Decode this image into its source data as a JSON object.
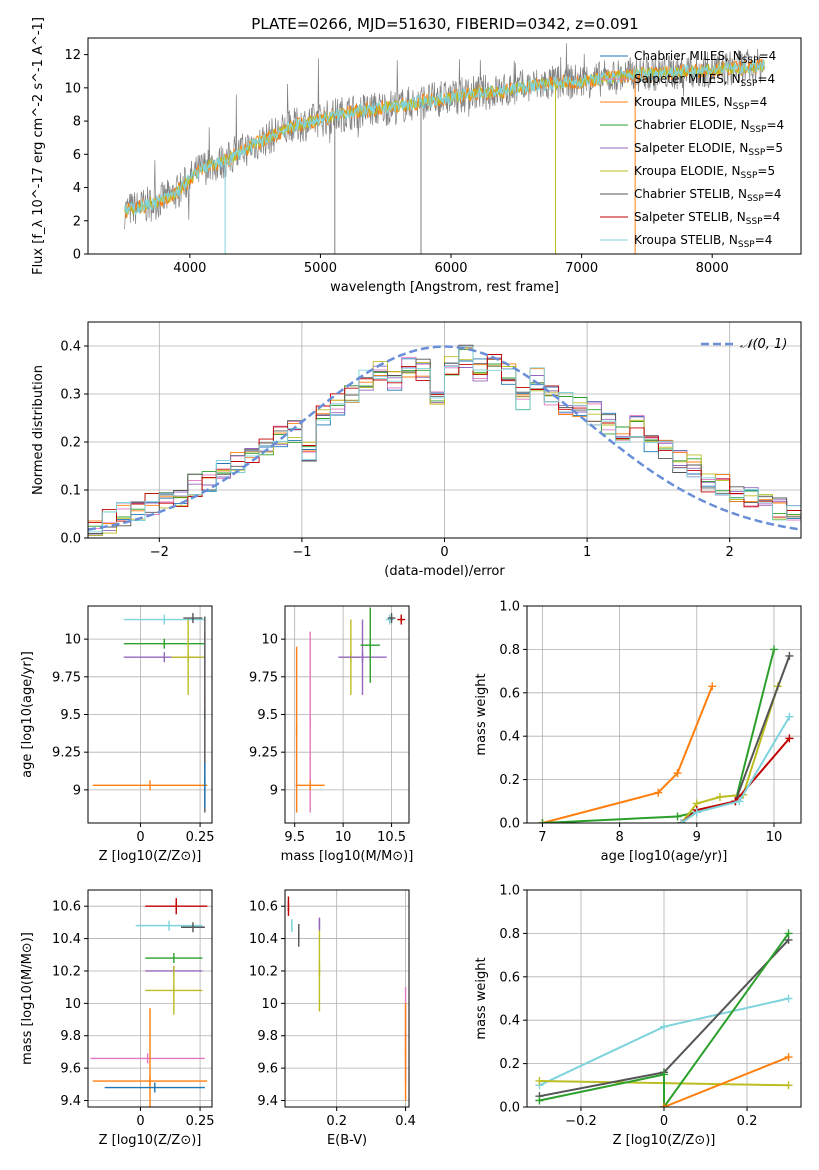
{
  "figure_title": "PLATE=0266, MJD=51630, FIBERID=0342, z=0.091",
  "series_colors": {
    "Chabrier MILES": "#1f77b4",
    "Salpeter MILES": "#e377c2",
    "Kroupa MILES": "#ff7f0e",
    "Chabrier ELODIE": "#2ca02c",
    "Salpeter ELODIE": "#9467bd",
    "Kroupa ELODIE": "#bcbd22",
    "Chabrier STELIB": "#555555",
    "Salpeter STELIB": "#c00000",
    "Kroupa STELIB": "#7fd3dc",
    "data": "#808080"
  },
  "chart_data": [
    {
      "id": "spectrum",
      "type": "line",
      "xlabel": "wavelength [Angstrom, rest frame]",
      "ylabel": "Flux [f_λ 10^-17 erg cm^-2 s^-1 A^-1]",
      "xlim": [
        3220,
        8680
      ],
      "ylim": [
        0,
        13
      ],
      "xticks": [
        4000,
        5000,
        6000,
        7000,
        8000
      ],
      "yticks": [
        0,
        2,
        4,
        6,
        8,
        10,
        12
      ],
      "legend": [
        "Chabrier MILES, N_SSP=4",
        "Salpeter MILES, N_SSP=4",
        "Kroupa MILES, N_SSP=4",
        "Chabrier ELODIE, N_SSP=4",
        "Salpeter ELODIE, N_SSP=5",
        "Kroupa ELODIE, N_SSP=5",
        "Chabrier STELIB, N_SSP=4",
        "Salpeter STELIB, N_SSP=4",
        "Kroupa STELIB, N_SSP=4"
      ],
      "legend_loc": "right",
      "continuum_x": [
        3500,
        3600,
        3700,
        3800,
        3900,
        4000,
        4100,
        4200,
        4300,
        4400,
        4500,
        4600,
        4700,
        4800,
        4900,
        5000,
        5200,
        5400,
        5600,
        5800,
        6000,
        6200,
        6400,
        6600,
        6800,
        7000,
        7200,
        7400,
        7600,
        7800,
        8000,
        8200,
        8400
      ],
      "continuum_y": [
        2.6,
        2.8,
        3.0,
        3.3,
        3.7,
        4.5,
        5.2,
        5.4,
        5.7,
        6.2,
        6.6,
        7.0,
        7.4,
        7.7,
        7.9,
        8.1,
        8.5,
        8.7,
        8.9,
        9.2,
        9.4,
        9.7,
        9.8,
        10.1,
        10.3,
        10.4,
        10.6,
        10.8,
        10.9,
        11.0,
        11.1,
        11.2,
        11.3
      ]
    },
    {
      "id": "residuals",
      "type": "step",
      "xlabel": "(data-model)/error",
      "ylabel": "Normed distribution",
      "xlim": [
        -2.5,
        2.5
      ],
      "ylim": [
        0,
        0.45
      ],
      "xticks": [
        -2,
        -1,
        0,
        1,
        2
      ],
      "yticks": [
        0.0,
        0.1,
        0.2,
        0.3,
        0.4
      ],
      "grid": true,
      "legend": [
        "𝒩(0, 1)"
      ],
      "legend_loc": "top-right",
      "bin_edges": [
        -2.5,
        -2.4,
        -2.3,
        -2.2,
        -2.1,
        -2.0,
        -1.9,
        -1.8,
        -1.7,
        -1.6,
        -1.5,
        -1.4,
        -1.3,
        -1.2,
        -1.1,
        -1.0,
        -0.9,
        -0.8,
        -0.7,
        -0.6,
        -0.5,
        -0.4,
        -0.3,
        -0.2,
        -0.1,
        0.0,
        0.1,
        0.2,
        0.3,
        0.4,
        0.5,
        0.6,
        0.7,
        0.8,
        0.9,
        1.0,
        1.1,
        1.2,
        1.3,
        1.4,
        1.5,
        1.6,
        1.7,
        1.8,
        1.9,
        2.0,
        2.1,
        2.2,
        2.3,
        2.4,
        2.5
      ],
      "base_hist": [
        0.03,
        0.035,
        0.05,
        0.055,
        0.07,
        0.075,
        0.09,
        0.11,
        0.12,
        0.14,
        0.16,
        0.18,
        0.19,
        0.21,
        0.22,
        0.18,
        0.26,
        0.28,
        0.3,
        0.33,
        0.35,
        0.33,
        0.36,
        0.35,
        0.3,
        0.36,
        0.38,
        0.35,
        0.37,
        0.34,
        0.29,
        0.33,
        0.3,
        0.28,
        0.27,
        0.26,
        0.24,
        0.22,
        0.23,
        0.2,
        0.19,
        0.16,
        0.15,
        0.12,
        0.11,
        0.09,
        0.08,
        0.07,
        0.06,
        0.05
      ]
    },
    {
      "id": "age_vs_Z",
      "type": "errorbar",
      "xlabel": "Z [log10(Z/Z⊙)]",
      "ylabel": "age [log10(age/yr)]",
      "xlim": [
        -0.22,
        0.3
      ],
      "ylim": [
        8.78,
        10.22
      ],
      "xticks": [
        0.0,
        0.25
      ],
      "yticks": [
        9.0,
        9.25,
        9.5,
        9.75,
        10.0
      ],
      "grid": true,
      "points": [
        {
          "series": "Kroupa STELIB",
          "x": 0.1,
          "y": 10.13,
          "xerr": 0.17,
          "yerr": 0.0
        },
        {
          "series": "Chabrier STELIB",
          "x": 0.22,
          "y": 10.14,
          "xerr": 0.04,
          "yerr": 0.0
        },
        {
          "series": "Chabrier ELODIE",
          "x": 0.1,
          "y": 9.97,
          "xerr": 0.17,
          "yerr": 0.0
        },
        {
          "series": "Salpeter ELODIE",
          "x": 0.1,
          "y": 9.88,
          "xerr": 0.17,
          "yerr": 0.0
        },
        {
          "series": "Kroupa ELODIE",
          "x": 0.2,
          "y": 9.88,
          "xerr": 0.07,
          "yerr": 0.25
        },
        {
          "series": "Salpeter MILES",
          "x": 0.27,
          "y": 9.6,
          "xerr": 0.0,
          "yerr": 0.45
        },
        {
          "series": "Chabrier STELIB",
          "x": 0.27,
          "y": 9.5,
          "xerr": 0.0,
          "yerr": 0.65
        },
        {
          "series": "Kroupa MILES",
          "x": 0.04,
          "y": 9.03,
          "xerr": 0.24,
          "yerr": 0.0
        },
        {
          "series": "Chabrier MILES",
          "x": 0.27,
          "y": 9.03,
          "xerr": 0.0,
          "yerr": 0.15
        }
      ]
    },
    {
      "id": "age_vs_mass",
      "type": "errorbar",
      "xlabel": "mass [log10(M/M⊙)]",
      "ylabel": "",
      "xlim": [
        9.4,
        10.68
      ],
      "ylim": [
        8.78,
        10.22
      ],
      "xticks": [
        9.5,
        10.0,
        10.5
      ],
      "yticks": [
        9.0,
        9.25,
        9.5,
        9.75,
        10.0
      ],
      "grid": true,
      "points": [
        {
          "series": "Salpeter STELIB",
          "x": 10.6,
          "y": 10.13,
          "xerr": 0.04,
          "yerr": 0.02
        },
        {
          "series": "Kroupa STELIB",
          "x": 10.48,
          "y": 10.13,
          "xerr": 0.04,
          "yerr": 0.02
        },
        {
          "series": "Chabrier STELIB",
          "x": 10.5,
          "y": 10.14,
          "xerr": 0.04,
          "yerr": 0.01
        },
        {
          "series": "Kroupa ELODIE",
          "x": 10.08,
          "y": 9.88,
          "xerr": 0.08,
          "yerr": 0.25
        },
        {
          "series": "Salpeter ELODIE",
          "x": 10.2,
          "y": 9.88,
          "xerr": 0.25,
          "yerr": 0.25
        },
        {
          "series": "Chabrier ELODIE",
          "x": 10.28,
          "y": 9.96,
          "xerr": 0.1,
          "yerr": 0.25
        },
        {
          "series": "Salpeter MILES",
          "x": 9.66,
          "y": 9.45,
          "xerr": 0.0,
          "yerr": 0.6
        },
        {
          "series": "Kroupa MILES",
          "x": 9.52,
          "y": 9.4,
          "xerr": 0.0,
          "yerr": 0.55
        },
        {
          "series": "Kroupa MILES",
          "x": 9.66,
          "y": 9.03,
          "xerr": 0.15,
          "yerr": 0.0
        }
      ]
    },
    {
      "id": "weight_vs_age",
      "type": "line",
      "xlabel": "age [log10(age/yr)]",
      "ylabel": "mass weight",
      "xlim": [
        6.8,
        10.35
      ],
      "ylim": [
        0,
        1.0
      ],
      "xticks": [
        7,
        8,
        9,
        10
      ],
      "yticks": [
        0.0,
        0.2,
        0.4,
        0.6,
        0.8,
        1.0
      ],
      "grid": true,
      "series": [
        {
          "series": "Kroupa MILES",
          "x": [
            7.0,
            8.5,
            8.75,
            9.2
          ],
          "y": [
            0.0,
            0.14,
            0.23,
            0.63
          ]
        },
        {
          "series": "Chabrier ELODIE",
          "x": [
            7.0,
            8.75,
            9.0,
            9.5,
            10.0
          ],
          "y": [
            0.0,
            0.03,
            0.05,
            0.1,
            0.8
          ]
        },
        {
          "series": "Kroupa ELODIE",
          "x": [
            8.8,
            9.0,
            9.3,
            9.6,
            10.05
          ],
          "y": [
            0.0,
            0.09,
            0.12,
            0.13,
            0.63
          ]
        },
        {
          "series": "Chabrier STELIB",
          "x": [
            8.8,
            9.0,
            9.5,
            10.2
          ],
          "y": [
            0.0,
            0.05,
            0.1,
            0.77
          ]
        },
        {
          "series": "Salpeter STELIB",
          "x": [
            8.8,
            9.0,
            9.5,
            10.2
          ],
          "y": [
            0.0,
            0.06,
            0.1,
            0.39
          ]
        },
        {
          "series": "Kroupa STELIB",
          "x": [
            8.8,
            9.0,
            9.55,
            10.2
          ],
          "y": [
            0.0,
            0.05,
            0.1,
            0.49
          ]
        }
      ]
    },
    {
      "id": "mass_vs_Z",
      "type": "errorbar",
      "xlabel": "Z [log10(Z/Z⊙)]",
      "ylabel": "mass [log10(M/M⊙)]",
      "xlim": [
        -0.22,
        0.3
      ],
      "ylim": [
        9.36,
        10.7
      ],
      "xticks": [
        0.0,
        0.25
      ],
      "yticks": [
        9.4,
        9.6,
        9.8,
        10.0,
        10.2,
        10.4,
        10.6
      ],
      "grid": true,
      "points": [
        {
          "series": "Salpeter STELIB",
          "x": 0.15,
          "y": 10.6,
          "xerr": 0.13,
          "yerr": 0.05
        },
        {
          "series": "Kroupa STELIB",
          "x": 0.12,
          "y": 10.48,
          "xerr": 0.14,
          "yerr": 0.0
        },
        {
          "series": "Chabrier STELIB",
          "x": 0.22,
          "y": 10.47,
          "xerr": 0.05,
          "yerr": 0.0
        },
        {
          "series": "Chabrier ELODIE",
          "x": 0.14,
          "y": 10.28,
          "xerr": 0.12,
          "yerr": 0.0
        },
        {
          "series": "Salpeter ELODIE",
          "x": 0.14,
          "y": 10.2,
          "xerr": 0.12,
          "yerr": 0.0
        },
        {
          "series": "Kroupa ELODIE",
          "x": 0.14,
          "y": 10.08,
          "xerr": 0.12,
          "yerr": 0.15
        },
        {
          "series": "Salpeter MILES",
          "x": 0.03,
          "y": 9.66,
          "xerr": 0.24,
          "yerr": 0.0
        },
        {
          "series": "Kroupa MILES",
          "x": 0.04,
          "y": 9.52,
          "xerr": 0.24,
          "yerr": 0.45
        },
        {
          "series": "Chabrier MILES",
          "x": 0.06,
          "y": 9.48,
          "xerr": 0.21,
          "yerr": 0.0
        }
      ]
    },
    {
      "id": "mass_vs_EBV",
      "type": "errorbar",
      "xlabel": "E(B-V)",
      "ylabel": "",
      "xlim": [
        0.05,
        0.41
      ],
      "ylim": [
        9.36,
        10.7
      ],
      "xticks": [
        0.2,
        0.4
      ],
      "yticks": [
        9.4,
        9.6,
        9.8,
        10.0,
        10.2,
        10.4,
        10.6
      ],
      "grid": true,
      "points": [
        {
          "series": "Salpeter STELIB",
          "x": 0.06,
          "y": 10.6,
          "xerr": 0.0,
          "yerr": 0.06
        },
        {
          "series": "Kroupa STELIB",
          "x": 0.07,
          "y": 10.48,
          "xerr": 0.0,
          "yerr": 0.04
        },
        {
          "series": "Chabrier STELIB",
          "x": 0.09,
          "y": 10.42,
          "xerr": 0.0,
          "yerr": 0.07
        },
        {
          "series": "Salpeter ELODIE",
          "x": 0.15,
          "y": 10.49,
          "xerr": 0.0,
          "yerr": 0.04
        },
        {
          "series": "Kroupa ELODIE",
          "x": 0.15,
          "y": 10.2,
          "xerr": 0.0,
          "yerr": 0.25
        },
        {
          "series": "Salpeter MILES",
          "x": 0.4,
          "y": 9.8,
          "xerr": 0.0,
          "yerr": 0.3
        },
        {
          "series": "Kroupa MILES",
          "x": 0.4,
          "y": 9.7,
          "xerr": 0.0,
          "yerr": 0.3
        }
      ]
    },
    {
      "id": "weight_vs_Z",
      "type": "line",
      "xlabel": "Z [log10(Z/Z⊙)]",
      "ylabel": "mass weight",
      "xlim": [
        -0.33,
        0.33
      ],
      "ylim": [
        0,
        1.0
      ],
      "xticks": [
        -0.2,
        0.0,
        0.2
      ],
      "yticks": [
        0.0,
        0.2,
        0.4,
        0.6,
        0.8,
        1.0
      ],
      "grid": true,
      "series": [
        {
          "series": "Kroupa STELIB",
          "x": [
            -0.3,
            0.0,
            0.3
          ],
          "y": [
            0.1,
            0.37,
            0.5
          ]
        },
        {
          "series": "Kroupa ELODIE",
          "x": [
            -0.3,
            0.0,
            0.3
          ],
          "y": [
            0.12,
            0.11,
            0.1
          ]
        },
        {
          "series": "Chabrier STELIB",
          "x": [
            -0.3,
            0.0,
            0.3
          ],
          "y": [
            0.05,
            0.16,
            0.77
          ]
        },
        {
          "series": "Chabrier ELODIE",
          "x": [
            -0.3,
            0.0,
            0.0,
            0.3
          ],
          "y": [
            0.03,
            0.15,
            0.0,
            0.8
          ]
        },
        {
          "series": "Kroupa MILES",
          "x": [
            0.0,
            0.3
          ],
          "y": [
            0.0,
            0.23
          ]
        }
      ]
    }
  ]
}
